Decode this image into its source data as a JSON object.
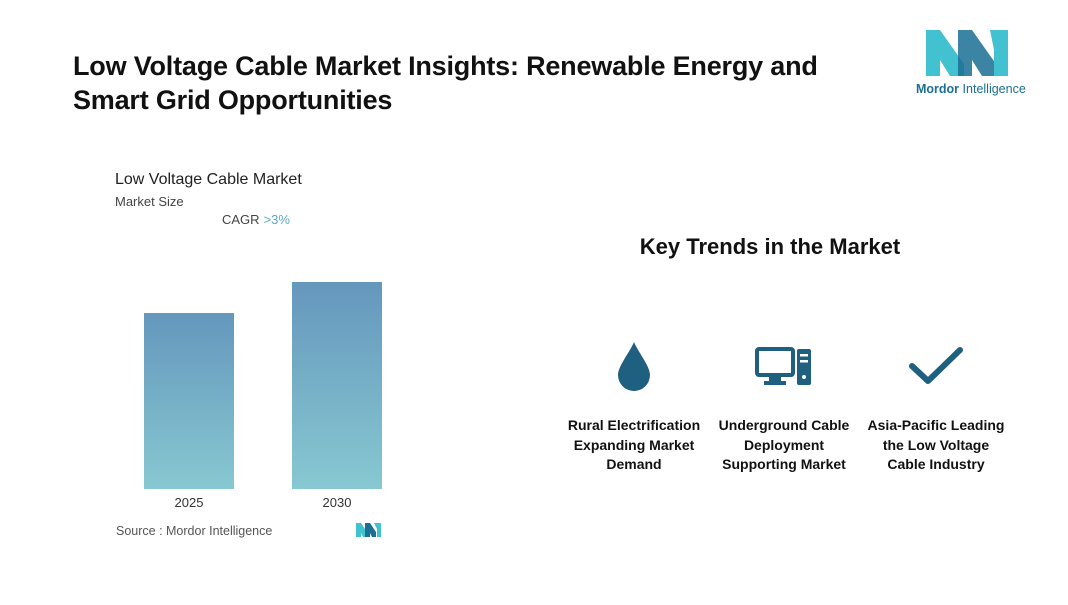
{
  "header": {
    "title": "Low Voltage Cable Market Insights: Renewable Energy and Smart Grid Opportunities",
    "logo_word1": "Mordor",
    "logo_word2": "Intelligence"
  },
  "chart_data": {
    "type": "bar",
    "title": "Low Voltage Cable Market",
    "subtitle": "Market Size",
    "cagr_label": "CAGR",
    "cagr_value": ">3%",
    "categories": [
      "2025",
      "2030"
    ],
    "values": [
      0.85,
      1.0
    ],
    "ylim": [
      0,
      1.0
    ],
    "grid": false,
    "colors": {
      "bar_top": "#6597bd",
      "bar_bottom": "#87c8d1"
    }
  },
  "footer": {
    "source": "Source :  Mordor Intelligence"
  },
  "trends": {
    "title": "Key Trends in the Market",
    "items": [
      {
        "icon": "droplet-icon",
        "label": "Rural Electrification Expanding Market Demand"
      },
      {
        "icon": "computer-icon",
        "label": "Underground Cable Deployment Supporting Market"
      },
      {
        "icon": "checkmark-icon",
        "label": "Asia-Pacific Leading the Low Voltage Cable Industry"
      }
    ]
  },
  "colors": {
    "icon": "#1f5f80",
    "accent": "#5aa9c8",
    "logo_dark": "#1a6f93",
    "logo_light": "#42c1d0"
  }
}
